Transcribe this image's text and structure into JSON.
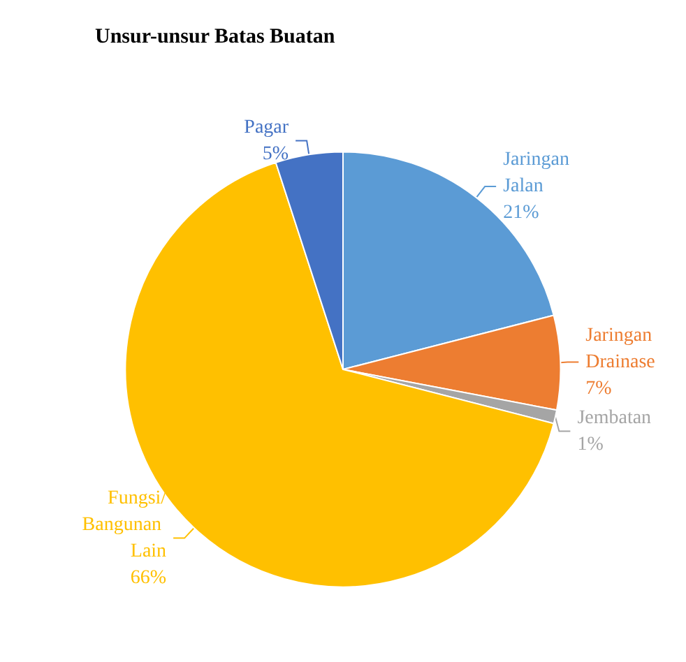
{
  "chart_data": {
    "type": "pie",
    "title": "Unsur-unsur Batas Buatan",
    "categories": [
      "Jaringan Jalan",
      "Jaringan Drainase",
      "Jembatan",
      "Fungsi/Bangunan Lain",
      "Pagar"
    ],
    "values": [
      21,
      7,
      1,
      66,
      5
    ],
    "colors": [
      "#5b9bd5",
      "#ed7d31",
      "#a5a5a5",
      "#ffc000",
      "#4472c4"
    ],
    "value_labels": [
      "21%",
      "7%",
      "1%",
      "66%",
      "5%"
    ],
    "legend": false
  }
}
